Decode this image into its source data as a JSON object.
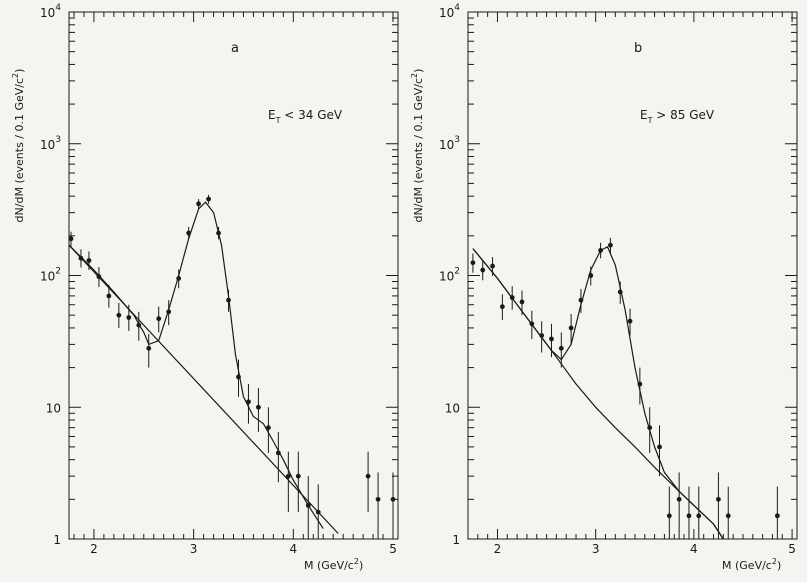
{
  "chart_data": [
    {
      "type": "scatter",
      "panel_label": "a",
      "annotation": {
        "prefix": "E",
        "sub": "T",
        "suffix": " < 34 GeV"
      },
      "ylabel": {
        "main": "dN/dM (events / 0.1 GeV/c",
        "sup": "2",
        "tail": ")"
      },
      "xlabel": {
        "main": "M (GeV/c",
        "sup": "2",
        "tail": ")"
      },
      "xlim": [
        1.75,
        5.05
      ],
      "ylim": [
        1,
        10000
      ],
      "yscale": "log",
      "x_ticks": [
        "2",
        "3",
        "4",
        "5"
      ],
      "y_ticks": [
        {
          "base": "1",
          "exp": ""
        },
        {
          "base": "10",
          "exp": ""
        },
        {
          "base": "10",
          "exp": "2"
        },
        {
          "base": "10",
          "exp": "3"
        },
        {
          "base": "10",
          "exp": "4"
        }
      ],
      "series": [
        {
          "points": [
            {
              "x": 1.77,
              "y": 190,
              "lo": 165,
              "hi": 215
            },
            {
              "x": 1.87,
              "y": 135,
              "lo": 115,
              "hi": 158
            },
            {
              "x": 1.95,
              "y": 130,
              "lo": 110,
              "hi": 152
            },
            {
              "x": 2.05,
              "y": 98,
              "lo": 82,
              "hi": 116
            },
            {
              "x": 2.15,
              "y": 70,
              "lo": 57,
              "hi": 85
            },
            {
              "x": 2.25,
              "y": 50,
              "lo": 40,
              "hi": 62
            },
            {
              "x": 2.35,
              "y": 48,
              "lo": 38,
              "hi": 60
            },
            {
              "x": 2.45,
              "y": 42,
              "lo": 32,
              "hi": 53
            },
            {
              "x": 2.55,
              "y": 28,
              "lo": 20,
              "hi": 36
            },
            {
              "x": 2.65,
              "y": 47,
              "lo": 37,
              "hi": 58
            },
            {
              "x": 2.75,
              "y": 53,
              "lo": 42,
              "hi": 65
            },
            {
              "x": 2.85,
              "y": 95,
              "lo": 80,
              "hi": 111
            },
            {
              "x": 2.95,
              "y": 210,
              "lo": 188,
              "hi": 234
            },
            {
              "x": 3.05,
              "y": 350,
              "lo": 322,
              "hi": 380
            },
            {
              "x": 3.15,
              "y": 380,
              "lo": 350,
              "hi": 410
            },
            {
              "x": 3.25,
              "y": 210,
              "lo": 188,
              "hi": 234
            },
            {
              "x": 3.35,
              "y": 65,
              "lo": 53,
              "hi": 78
            },
            {
              "x": 3.45,
              "y": 17,
              "lo": 12,
              "hi": 23
            },
            {
              "x": 3.55,
              "y": 11,
              "lo": 7.5,
              "hi": 15
            },
            {
              "x": 3.65,
              "y": 10,
              "lo": 6.5,
              "hi": 14
            },
            {
              "x": 3.75,
              "y": 7,
              "lo": 4.5,
              "hi": 10
            },
            {
              "x": 3.85,
              "y": 4.5,
              "lo": 2.7,
              "hi": 6.5
            },
            {
              "x": 3.95,
              "y": 3,
              "lo": 1.6,
              "hi": 4.6
            },
            {
              "x": 4.05,
              "y": 3,
              "lo": 1.6,
              "hi": 4.6
            },
            {
              "x": 4.15,
              "y": 1.8,
              "lo": 0.8,
              "hi": 3.0
            },
            {
              "x": 4.25,
              "y": 1.6,
              "lo": 0.7,
              "hi": 2.6
            },
            {
              "x": 4.75,
              "y": 3,
              "lo": 1.6,
              "hi": 4.6
            },
            {
              "x": 4.85,
              "y": 2,
              "lo": 1.0,
              "hi": 3.2
            },
            {
              "x": 5.0,
              "y": 2,
              "lo": 1.0,
              "hi": 3.2
            }
          ]
        }
      ],
      "background_fit": [
        [
          1.75,
          170
        ],
        [
          4.45,
          1.1
        ]
      ],
      "total_fit": [
        [
          1.75,
          170
        ],
        [
          2.0,
          110
        ],
        [
          2.2,
          75
        ],
        [
          2.4,
          50
        ],
        [
          2.5,
          37
        ],
        [
          2.55,
          30
        ],
        [
          2.65,
          32
        ],
        [
          2.75,
          55
        ],
        [
          2.85,
          100
        ],
        [
          2.95,
          190
        ],
        [
          3.05,
          320
        ],
        [
          3.12,
          360
        ],
        [
          3.2,
          300
        ],
        [
          3.28,
          170
        ],
        [
          3.35,
          70
        ],
        [
          3.42,
          25
        ],
        [
          3.5,
          12
        ],
        [
          3.6,
          8.5
        ],
        [
          3.7,
          7.5
        ],
        [
          3.8,
          5.5
        ],
        [
          3.9,
          4.0
        ],
        [
          4.0,
          2.8
        ],
        [
          4.15,
          1.8
        ],
        [
          4.3,
          1.2
        ]
      ]
    },
    {
      "type": "scatter",
      "panel_label": "b",
      "annotation": {
        "prefix": "E",
        "sub": "T",
        "suffix": " > 85 GeV"
      },
      "ylabel": {
        "main": "dN/dM (events / 0.1 GeV/c",
        "sup": "2",
        "tail": ")"
      },
      "xlabel": {
        "main": "M (GeV/c",
        "sup": "2",
        "tail": ")"
      },
      "xlim": [
        1.7,
        5.05
      ],
      "ylim": [
        1,
        10000
      ],
      "yscale": "log",
      "x_ticks": [
        "2",
        "3",
        "4",
        "5"
      ],
      "y_ticks": [
        {
          "base": "1",
          "exp": ""
        },
        {
          "base": "10",
          "exp": ""
        },
        {
          "base": "10",
          "exp": "2"
        },
        {
          "base": "10",
          "exp": "3"
        },
        {
          "base": "10",
          "exp": "4"
        }
      ],
      "series": [
        {
          "points": [
            {
              "x": 1.75,
              "y": 125,
              "lo": 105,
              "hi": 147
            },
            {
              "x": 1.85,
              "y": 110,
              "lo": 92,
              "hi": 130
            },
            {
              "x": 1.95,
              "y": 118,
              "lo": 99,
              "hi": 138
            },
            {
              "x": 2.05,
              "y": 58,
              "lo": 46,
              "hi": 72
            },
            {
              "x": 2.15,
              "y": 68,
              "lo": 55,
              "hi": 83
            },
            {
              "x": 2.25,
              "y": 63,
              "lo": 50,
              "hi": 77
            },
            {
              "x": 2.35,
              "y": 43,
              "lo": 33,
              "hi": 54
            },
            {
              "x": 2.45,
              "y": 35,
              "lo": 26,
              "hi": 45
            },
            {
              "x": 2.55,
              "y": 33,
              "lo": 24,
              "hi": 43
            },
            {
              "x": 2.65,
              "y": 28,
              "lo": 20,
              "hi": 37
            },
            {
              "x": 2.75,
              "y": 40,
              "lo": 30,
              "hi": 51
            },
            {
              "x": 2.85,
              "y": 65,
              "lo": 52,
              "hi": 79
            },
            {
              "x": 2.95,
              "y": 100,
              "lo": 84,
              "hi": 117
            },
            {
              "x": 3.05,
              "y": 155,
              "lo": 135,
              "hi": 177
            },
            {
              "x": 3.15,
              "y": 170,
              "lo": 148,
              "hi": 193
            },
            {
              "x": 3.25,
              "y": 75,
              "lo": 61,
              "hi": 90
            },
            {
              "x": 3.35,
              "y": 45,
              "lo": 35,
              "hi": 56
            },
            {
              "x": 3.45,
              "y": 15,
              "lo": 10.5,
              "hi": 20
            },
            {
              "x": 3.55,
              "y": 7,
              "lo": 4.5,
              "hi": 10
            },
            {
              "x": 3.65,
              "y": 5,
              "lo": 3,
              "hi": 7.3
            },
            {
              "x": 3.75,
              "y": 1.5,
              "lo": 0.6,
              "hi": 2.5
            },
            {
              "x": 3.85,
              "y": 2,
              "lo": 1.0,
              "hi": 3.2
            },
            {
              "x": 3.95,
              "y": 1.5,
              "lo": 0.6,
              "hi": 2.5
            },
            {
              "x": 4.05,
              "y": 1.5,
              "lo": 0.6,
              "hi": 2.5
            },
            {
              "x": 4.25,
              "y": 2,
              "lo": 1.0,
              "hi": 3.2
            },
            {
              "x": 4.35,
              "y": 1.5,
              "lo": 0.6,
              "hi": 2.5
            },
            {
              "x": 4.85,
              "y": 1.5,
              "lo": 0.6,
              "hi": 2.5
            }
          ]
        }
      ],
      "background_fit": [
        [
          1.75,
          160
        ],
        [
          2.0,
          95
        ],
        [
          2.2,
          60
        ],
        [
          2.4,
          38
        ],
        [
          2.6,
          24
        ],
        [
          2.8,
          15
        ],
        [
          3.0,
          10
        ],
        [
          3.2,
          7
        ],
        [
          3.4,
          5
        ],
        [
          3.6,
          3.5
        ],
        [
          3.8,
          2.5
        ],
        [
          4.0,
          1.8
        ],
        [
          4.2,
          1.3
        ],
        [
          4.3,
          1.0
        ]
      ],
      "total_fit": [
        [
          1.75,
          160
        ],
        [
          2.0,
          95
        ],
        [
          2.2,
          60
        ],
        [
          2.4,
          38
        ],
        [
          2.55,
          27
        ],
        [
          2.65,
          23
        ],
        [
          2.75,
          30
        ],
        [
          2.85,
          60
        ],
        [
          2.95,
          110
        ],
        [
          3.05,
          155
        ],
        [
          3.12,
          165
        ],
        [
          3.2,
          120
        ],
        [
          3.3,
          55
        ],
        [
          3.4,
          20
        ],
        [
          3.5,
          9
        ],
        [
          3.6,
          5.0
        ],
        [
          3.7,
          3.2
        ],
        [
          3.85,
          2.3
        ],
        [
          4.0,
          1.8
        ],
        [
          4.2,
          1.3
        ],
        [
          4.3,
          1.0
        ]
      ]
    }
  ]
}
